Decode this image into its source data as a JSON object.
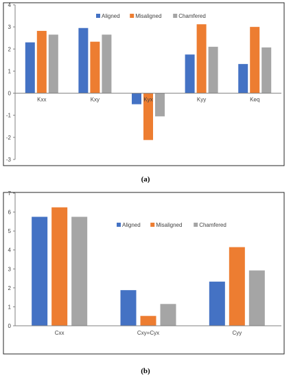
{
  "colors": {
    "aligned": "#4472C4",
    "misaligned": "#ED7D31",
    "chamfered": "#A5A5A5",
    "axis": "#808080",
    "frame": "#262626"
  },
  "chart_data": [
    {
      "type": "bar",
      "caption": "(a)",
      "categories": [
        "Kxx",
        "Kxy",
        "Kyx",
        "Kyy",
        "Keq"
      ],
      "series": [
        {
          "name": "Aligned",
          "values": [
            2.3,
            2.95,
            -0.5,
            1.75,
            1.32
          ]
        },
        {
          "name": "Misaligned",
          "values": [
            2.82,
            2.33,
            -2.12,
            3.12,
            3.0
          ]
        },
        {
          "name": "Chamfered",
          "values": [
            2.65,
            2.65,
            -1.05,
            2.1,
            2.07
          ]
        }
      ],
      "ylim": [
        -3,
        4
      ],
      "yticks": [
        "-3",
        "-2",
        "-1",
        "0",
        "1",
        "2",
        "3",
        "4"
      ],
      "grid": false,
      "legend_position": "top"
    },
    {
      "type": "bar",
      "caption": "(b)",
      "categories": [
        "Cxx",
        "Cxy=Cyx",
        "Cyy"
      ],
      "series": [
        {
          "name": "Aligned",
          "values": [
            5.75,
            1.88,
            2.33
          ]
        },
        {
          "name": "Misaligned",
          "values": [
            6.25,
            0.52,
            4.15
          ]
        },
        {
          "name": "Chamfered",
          "values": [
            5.75,
            1.15,
            2.92
          ]
        }
      ],
      "ylim": [
        0,
        7
      ],
      "yticks": [
        "0",
        "1",
        "2",
        "3",
        "4",
        "5",
        "6",
        "7"
      ],
      "grid": false,
      "legend_position": "top"
    }
  ]
}
